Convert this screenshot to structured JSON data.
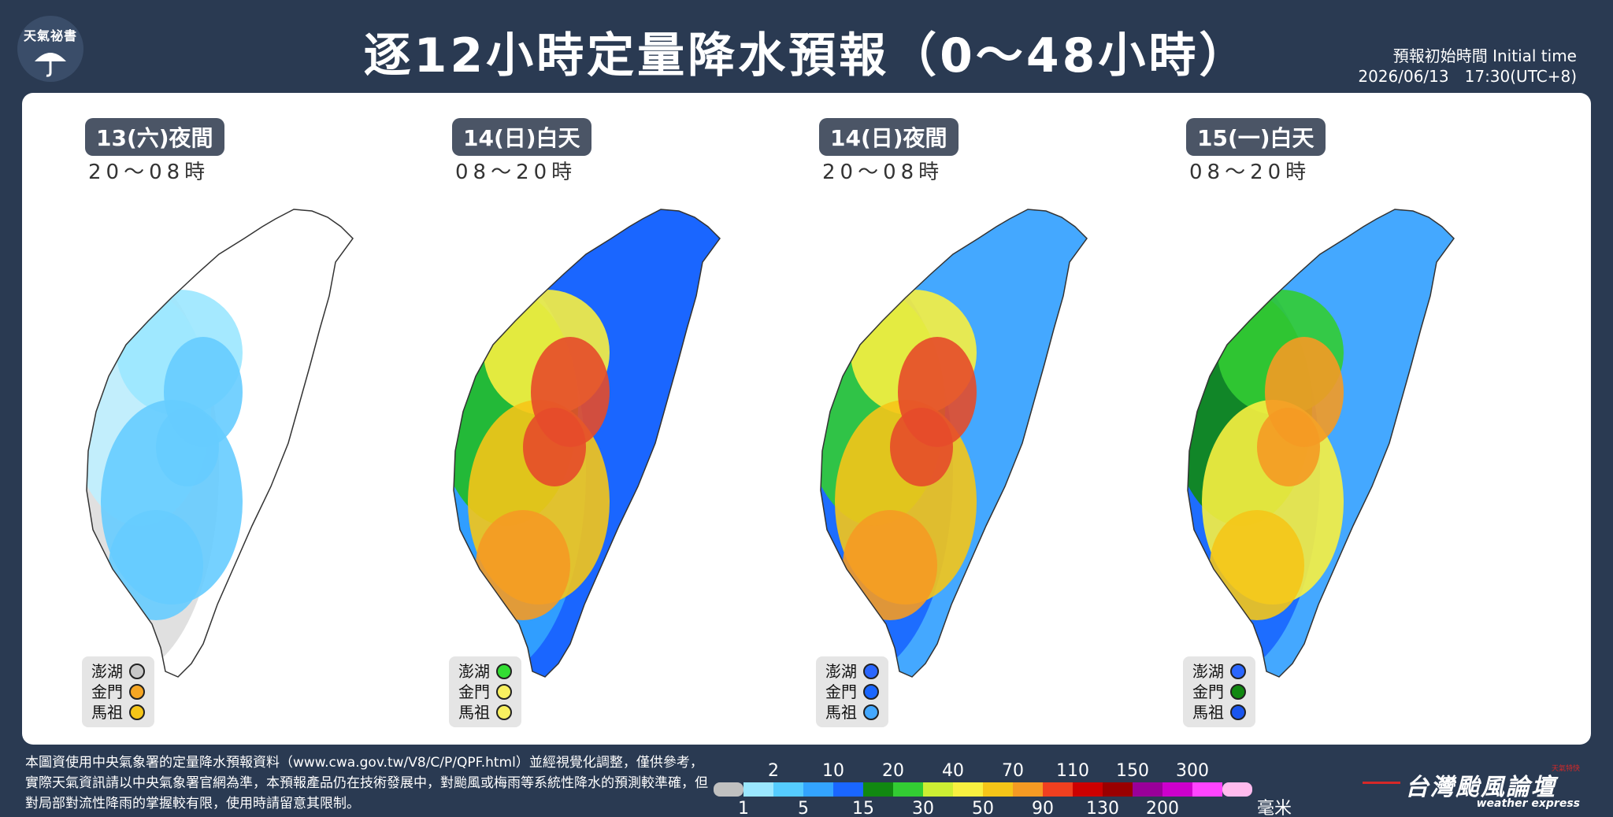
{
  "logo": {
    "text": "天氣祕書",
    "icon": "umbrella-icon"
  },
  "title": "逐12小時定量降水預報（0～48小時）",
  "initial_time": {
    "label": "預報初始時間 Initial time",
    "value": "2026/06/13　17:30(UTC+8)"
  },
  "panels": [
    {
      "period": "13(六)夜間",
      "hours": "20～08時",
      "islands": [
        {
          "name": "澎湖",
          "color": "#c8c8c8"
        },
        {
          "name": "金門",
          "color": "#f5a623"
        },
        {
          "name": "馬祖",
          "color": "#f5c518"
        }
      ],
      "palette": [
        "#ffffff",
        "#dddddd",
        "#bfefff",
        "#9be7ff",
        "#66ccff"
      ]
    },
    {
      "period": "14(日)白天",
      "hours": "08～20時",
      "islands": [
        {
          "name": "澎湖",
          "color": "#33dd33"
        },
        {
          "name": "金門",
          "color": "#f8f060"
        },
        {
          "name": "馬祖",
          "color": "#f8f060"
        }
      ],
      "palette": [
        "#1a66ff",
        "#33a4ff",
        "#22bb22",
        "#f8f040",
        "#f5c518",
        "#f59a23",
        "#e54b2a"
      ]
    },
    {
      "period": "14(日)夜間",
      "hours": "20～08時",
      "islands": [
        {
          "name": "澎湖",
          "color": "#2a66ff"
        },
        {
          "name": "金門",
          "color": "#1a66ff"
        },
        {
          "name": "馬祖",
          "color": "#44a8ff"
        }
      ],
      "palette": [
        "#44a8ff",
        "#1a66ff",
        "#33cc33",
        "#f8f040",
        "#f5c518",
        "#f59a23",
        "#e54b2a"
      ]
    },
    {
      "period": "15(一)白天",
      "hours": "08～20時",
      "islands": [
        {
          "name": "澎湖",
          "color": "#2a66ff"
        },
        {
          "name": "金門",
          "color": "#118811"
        },
        {
          "name": "馬祖",
          "color": "#1a55ee"
        }
      ],
      "palette": [
        "#44a8ff",
        "#1a66ff",
        "#118811",
        "#33cc33",
        "#f8f040",
        "#f5c518",
        "#f59a23"
      ]
    }
  ],
  "footnote": "本圖資使用中央氣象署的定量降水預報資料（www.cwa.gov.tw/V8/C/P/QPF.html）並經視覺化調整，僅供參考，實際天氣資訊請以中央氣象署官網為準，本預報產品仍在技術發展中，對颱風或梅雨等系統性降水的預測較準確，但對局部對流性降雨的掌握較有限，使用時請留意其限制。",
  "legend": {
    "colors": [
      "#c0c0c0",
      "#9be7ff",
      "#55ccff",
      "#33a4ff",
      "#1a66ff",
      "#118811",
      "#33cc33",
      "#ccee33",
      "#f8f040",
      "#f5c518",
      "#f59a23",
      "#f04020",
      "#cc0000",
      "#990000",
      "#990099",
      "#cc00cc",
      "#ff44ff",
      "#ffbbee"
    ],
    "top_labels": [
      "2",
      "10",
      "20",
      "40",
      "70",
      "110",
      "150",
      "300"
    ],
    "bottom_labels": [
      "1",
      "5",
      "15",
      "30",
      "50",
      "90",
      "130",
      "200"
    ],
    "unit": "毫米"
  },
  "brand": {
    "name": "台灣颱風論壇",
    "sub": "weather express",
    "tag": "天氣特快"
  }
}
